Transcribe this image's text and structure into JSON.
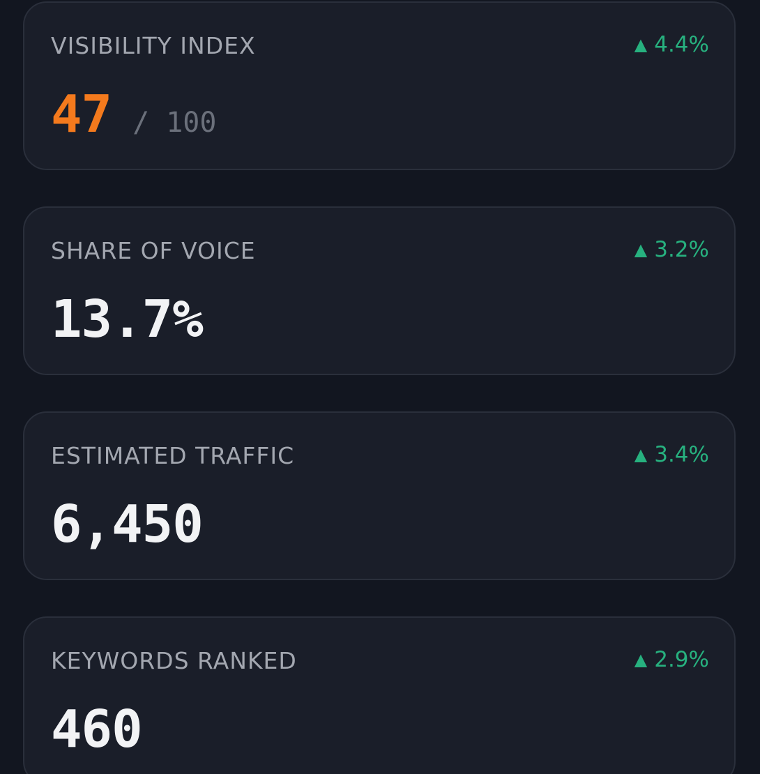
{
  "metrics": [
    {
      "label": "VISIBILITY INDEX",
      "delta_arrow": "▲",
      "delta": "4.4%",
      "value": "47",
      "separator": "/",
      "suffix": "100",
      "value_color": "#f47a1d"
    },
    {
      "label": "SHARE OF VOICE",
      "delta_arrow": "▲",
      "delta": "3.2%",
      "value": "13.7%"
    },
    {
      "label": "ESTIMATED TRAFFIC",
      "delta_arrow": "▲",
      "delta": "3.4%",
      "value": "6,450"
    },
    {
      "label": "KEYWORDS RANKED",
      "delta_arrow": "▲",
      "delta": "2.9%",
      "value": "460"
    }
  ],
  "colors": {
    "background": "#121620",
    "card": "#1a1e29",
    "positive": "#27b17f",
    "accent": "#f47a1d"
  }
}
